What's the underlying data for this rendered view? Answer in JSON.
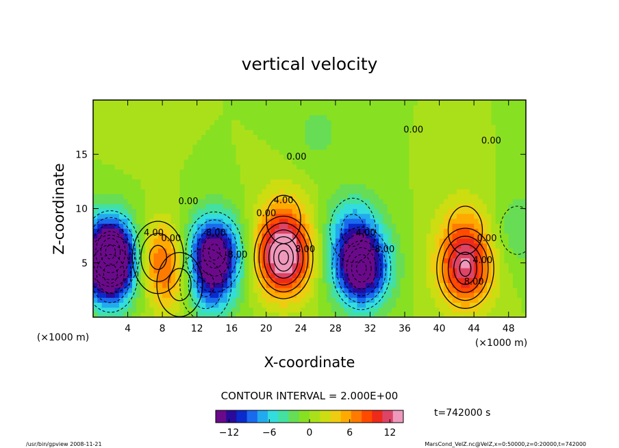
{
  "chart_data": {
    "type": "heatmap",
    "title": "vertical velocity",
    "xlabel": "X-coordinate",
    "ylabel": "Z-coordinate",
    "x_unit": "(×1000 m)",
    "y_unit": "(×1000 m)",
    "xlim": [
      0,
      50
    ],
    "ylim": [
      0,
      20
    ],
    "x_ticks": [
      4,
      8,
      12,
      16,
      20,
      24,
      28,
      32,
      36,
      40,
      44,
      48
    ],
    "y_ticks": [
      5,
      10,
      15
    ],
    "contour_interval_text": "CONTOUR INTERVAL = 2.000E+00",
    "contour_labels": [
      "0.00",
      "0.00",
      "0.00",
      "0.00",
      "0.00",
      "0.00",
      "0.00",
      "4.00",
      "4.00",
      "4.00",
      "4.00",
      "8.00",
      "8.00",
      "-8.00",
      "-8.00",
      "-8.00"
    ],
    "colorbar": {
      "min": -14,
      "max": 14,
      "ticks": [
        -12,
        -6,
        0,
        6,
        12
      ],
      "colors": [
        "#6a0a8a",
        "#2a0a9a",
        "#0a2acc",
        "#1a6aee",
        "#22aaee",
        "#33dddd",
        "#44e0a0",
        "#66dd55",
        "#88e022",
        "#aae01a",
        "#ccdd11",
        "#eecc11",
        "#ffaa00",
        "#ff7a00",
        "#ff4a00",
        "#ee2a1a",
        "#dd4466",
        "#ee99bb"
      ]
    },
    "cells": [
      {
        "x": 2,
        "z": 6,
        "v": -15
      },
      {
        "x": 2,
        "z": 4,
        "v": -9
      },
      {
        "x": 7.5,
        "z": 5.5,
        "v": 7
      },
      {
        "x": 10,
        "z": 3,
        "v": 5
      },
      {
        "x": 14,
        "z": 6,
        "v": -13
      },
      {
        "x": 13,
        "z": 3,
        "v": -8
      },
      {
        "x": 22,
        "z": 5.5,
        "v": 14
      },
      {
        "x": 22,
        "z": 9,
        "v": 4
      },
      {
        "x": 31,
        "z": 4.5,
        "v": -15
      },
      {
        "x": 30,
        "z": 8,
        "v": -6
      },
      {
        "x": 43,
        "z": 4.5,
        "v": 11
      },
      {
        "x": 43,
        "z": 8,
        "v": 4
      },
      {
        "x": 49,
        "z": 8,
        "v": -3
      },
      {
        "x": 26,
        "z": 17,
        "v": -2
      },
      {
        "x": 5,
        "z": 17,
        "v": 0.5
      }
    ]
  },
  "time_label": "t=742000 s",
  "footer": {
    "left": "/usr/bin/gpview   2008-11-21",
    "right": "MarsCond_VelZ.nc@VelZ,x=0:50000,z=0:20000,t=742000"
  }
}
